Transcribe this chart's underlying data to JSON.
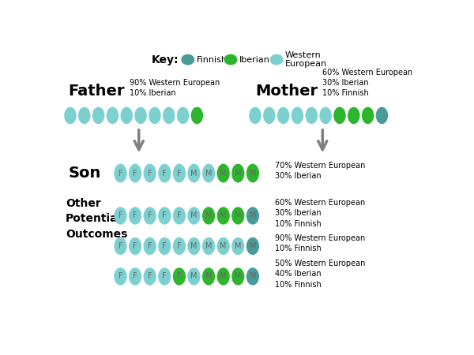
{
  "key_items": [
    {
      "label": "Finnish",
      "color": "#4a9a9a"
    },
    {
      "label": "Iberian",
      "color": "#2db52d"
    },
    {
      "label": "Western\nEuropean",
      "color": "#7dd0d0"
    }
  ],
  "father_label": "Father",
  "father_annotation": "90% Western European\n10% Iberian",
  "father_row": [
    "WE",
    "WE",
    "WE",
    "WE",
    "WE",
    "WE",
    "WE",
    "WE",
    "WE",
    "IB"
  ],
  "mother_label": "Mother",
  "mother_annotation": "60% Western European\n30% Iberian\n10% Finnish",
  "mother_row": [
    "WE",
    "WE",
    "WE",
    "WE",
    "WE",
    "WE",
    "IB",
    "IB",
    "IB",
    "FI"
  ],
  "son_label": "Son",
  "son_annotation": "70% Western European\n30% Iberian",
  "son_row": [
    "WE",
    "WE",
    "WE",
    "WE",
    "WE",
    "WE",
    "WE",
    "IB",
    "IB",
    "IB"
  ],
  "son_labels": [
    "F",
    "F",
    "F",
    "F",
    "F",
    "M",
    "M",
    "M",
    "M",
    "M"
  ],
  "other_label": "Other\nPotential\nOutcomes",
  "other_rows": [
    {
      "colors": [
        "WE",
        "WE",
        "WE",
        "WE",
        "WE",
        "WE",
        "IB",
        "IB",
        "IB",
        "FI"
      ],
      "labels": [
        "F",
        "F",
        "F",
        "F",
        "F",
        "M",
        "M",
        "M",
        "M",
        "M"
      ],
      "annotation": "60% Western European\n30% Iberian\n10% Finnish"
    },
    {
      "colors": [
        "WE",
        "WE",
        "WE",
        "WE",
        "WE",
        "WE",
        "WE",
        "WE",
        "WE",
        "FI"
      ],
      "labels": [
        "F",
        "F",
        "F",
        "F",
        "F",
        "M",
        "M",
        "M",
        "M",
        "M"
      ],
      "annotation": "90% Western European\n10% Finnish"
    },
    {
      "colors": [
        "WE",
        "WE",
        "WE",
        "WE",
        "IB",
        "WE",
        "IB",
        "IB",
        "IB",
        "FI"
      ],
      "labels": [
        "F",
        "F",
        "F",
        "F",
        "F",
        "M",
        "M",
        "M",
        "M",
        "M"
      ],
      "annotation": "50% Western European\n40% Iberian\n10% Finnish"
    }
  ],
  "colors": {
    "WE": "#7dd0d0",
    "IB": "#2db52d",
    "FI": "#4a9a9a"
  },
  "text_color_on_ellipse": "#666666",
  "figsize": [
    6.0,
    4.5
  ],
  "dpi": 100
}
